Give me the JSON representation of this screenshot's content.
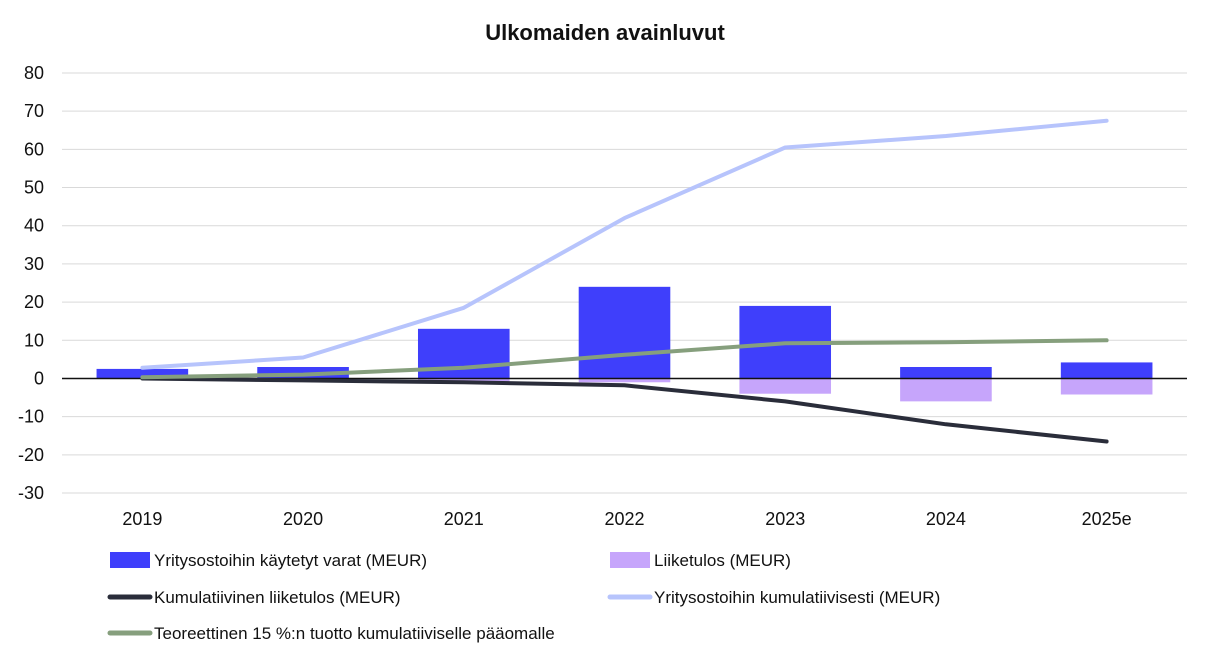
{
  "chart_data": {
    "type": "bar",
    "title": "Ulkomaiden avainluvut",
    "xlabel": "",
    "ylabel": "",
    "categories": [
      "2019",
      "2020",
      "2021",
      "2022",
      "2023",
      "2024",
      "2025e"
    ],
    "ylim": [
      -30,
      80
    ],
    "yticks": [
      -30,
      -20,
      -10,
      0,
      10,
      20,
      30,
      40,
      50,
      60,
      70,
      80
    ],
    "grid": true,
    "legend_position": "bottom",
    "series": [
      {
        "name": "Yritysostoihin käytetyt varat (MEUR)",
        "kind": "bar",
        "color": "#3f3ffb",
        "values": [
          2.5,
          3,
          13,
          24,
          19,
          3,
          4.2
        ]
      },
      {
        "name": "Liiketulos (MEUR)",
        "kind": "bar",
        "color": "#c6a5fb",
        "values": [
          0,
          -0.5,
          -0.8,
          -1,
          -4,
          -6,
          -4.2
        ]
      },
      {
        "name": "Kumulatiivinen liiketulos (MEUR)",
        "kind": "line",
        "color": "#2a2d3a",
        "values": [
          0,
          -0.5,
          -1,
          -1.8,
          -6,
          -12,
          -16.5
        ]
      },
      {
        "name": "Yritysostoihin kumulatiivisesti (MEUR)",
        "kind": "line",
        "color": "#b7c4fc",
        "values": [
          2.8,
          5.5,
          18.5,
          42,
          60.5,
          63.5,
          67.5
        ]
      },
      {
        "name": "Teoreettinen 15 %:n tuotto kumulatiiviselle pääomalle",
        "kind": "line",
        "color": "#869f7d",
        "values": [
          0.3,
          1,
          2.8,
          6.2,
          9.2,
          9.5,
          10
        ]
      }
    ]
  }
}
